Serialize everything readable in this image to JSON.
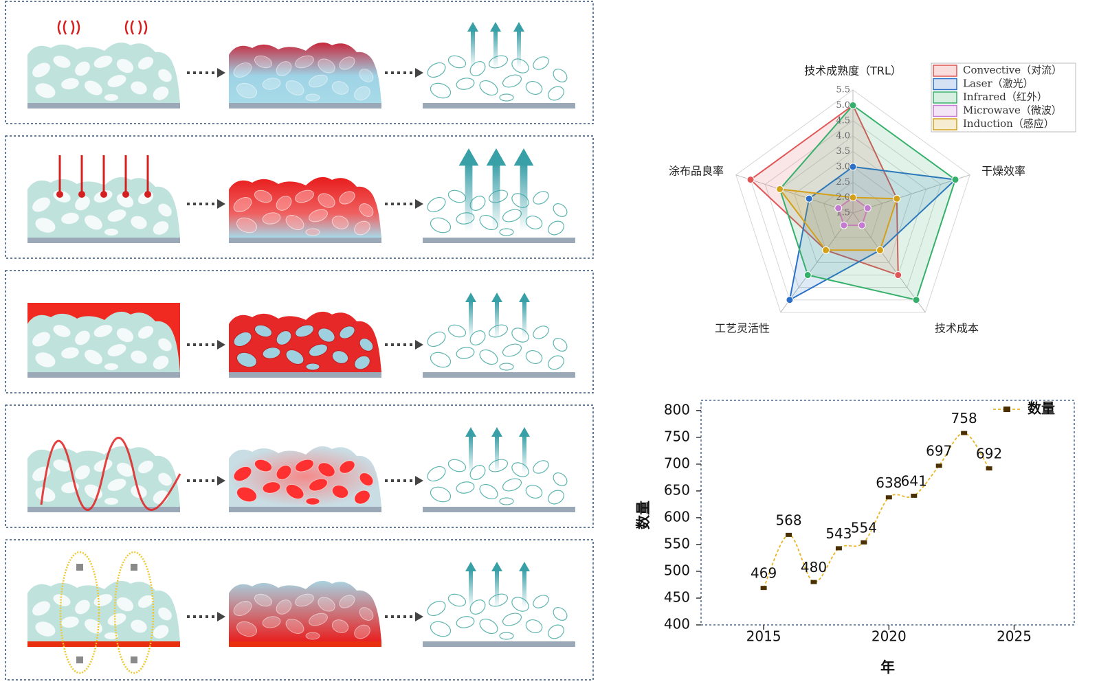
{
  "chart_data": [
    {
      "type": "radar",
      "axes": [
        "技术成熟度（TRL）",
        "干燥效率",
        "技术成本",
        "工艺灵活性",
        "涂布品良率"
      ],
      "rlim": [
        1.5,
        5.5
      ],
      "rticks": [
        1.5,
        {
          "value": 2,
          "label": "2.0"
        },
        2.5,
        {
          "value": 3,
          "label": "3.0"
        },
        3.5,
        {
          "value": 4,
          "label": "4.0"
        },
        4.5,
        {
          "value": 5,
          "label": "5.0"
        },
        5.5
      ],
      "legend": "top-right",
      "series": [
        {
          "name": "Convective（对流）",
          "color": "#e05555",
          "values": [
            5.0,
            3.0,
            4.0,
            3.0,
            5.0
          ]
        },
        {
          "name": "Laser（激光）",
          "color": "#2a6fc8",
          "values": [
            3.0,
            5.0,
            3.0,
            5.0,
            3.0
          ]
        },
        {
          "name": "Infrared（红外）",
          "color": "#35b06a",
          "values": [
            5.0,
            5.0,
            5.0,
            4.0,
            4.0
          ]
        },
        {
          "name": "Microwave（微波）",
          "color": "#c37ad0",
          "values": [
            2.0,
            2.0,
            2.0,
            2.0,
            2.0
          ]
        },
        {
          "name": "Induction（感应）",
          "color": "#d4a017",
          "values": [
            2.0,
            3.0,
            3.0,
            3.0,
            4.0
          ]
        }
      ]
    },
    {
      "type": "line",
      "xlabel": "年",
      "ylabel": "数量",
      "x": [
        2015,
        2016,
        2017,
        2018,
        2019,
        2020,
        2021,
        2022,
        2023,
        2024
      ],
      "xlim": [
        2012.5,
        2027.4
      ],
      "xticks": [
        2015,
        2020,
        2025
      ],
      "ylim": [
        400,
        819
      ],
      "yticks": [
        400,
        450,
        500,
        550,
        600,
        650,
        700,
        750,
        800
      ],
      "legend": "top-right",
      "series": [
        {
          "name": "数量",
          "color": "#4a3000",
          "line_color": "#e8b420",
          "values": [
            469,
            568,
            480,
            543,
            554,
            638,
            641,
            697,
            758,
            692
          ]
        }
      ]
    }
  ]
}
